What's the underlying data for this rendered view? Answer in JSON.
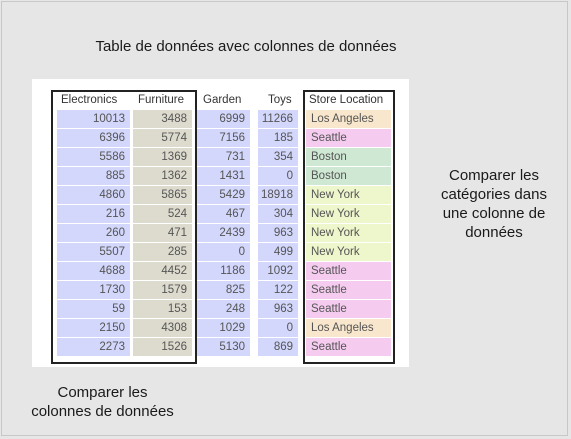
{
  "title": "Table de données avec colonnes de données",
  "caption_left": [
    "Comparer les",
    "colonnes de données"
  ],
  "caption_right": [
    "Comparer les",
    "catégories dans",
    "une colonne de",
    "données"
  ],
  "table": {
    "headers": [
      "Electronics",
      "Furniture",
      "Garden",
      "Toys",
      "Store Location"
    ],
    "rows": [
      [
        "10013",
        "3488",
        "6999",
        "11266",
        "Los Angeles"
      ],
      [
        "6396",
        "5774",
        "7156",
        "185",
        "Seattle"
      ],
      [
        "5586",
        "1369",
        "731",
        "354",
        "Boston"
      ],
      [
        "885",
        "1362",
        "1431",
        "0",
        "Boston"
      ],
      [
        "4860",
        "5865",
        "5429",
        "18918",
        "New York"
      ],
      [
        "216",
        "524",
        "467",
        "304",
        "New York"
      ],
      [
        "260",
        "471",
        "2439",
        "963",
        "New York"
      ],
      [
        "5507",
        "285",
        "0",
        "499",
        "New York"
      ],
      [
        "4688",
        "4452",
        "1186",
        "1092",
        "Seattle"
      ],
      [
        "1730",
        "1579",
        "825",
        "122",
        "Seattle"
      ],
      [
        "59",
        "153",
        "248",
        "963",
        "Seattle"
      ],
      [
        "2150",
        "4308",
        "1029",
        "0",
        "Los Angeles"
      ],
      [
        "2273",
        "1526",
        "5130",
        "869",
        "Seattle"
      ]
    ]
  },
  "colors": {
    "numeric_column": "#d3d7fb",
    "selected_column": "#dddbce",
    "location_fill": {
      "Los Angeles": "#f8e7cc",
      "Seattle": "#f5ccf0",
      "Boston": "#cfe8d4",
      "New York": "#eef6cc"
    }
  }
}
